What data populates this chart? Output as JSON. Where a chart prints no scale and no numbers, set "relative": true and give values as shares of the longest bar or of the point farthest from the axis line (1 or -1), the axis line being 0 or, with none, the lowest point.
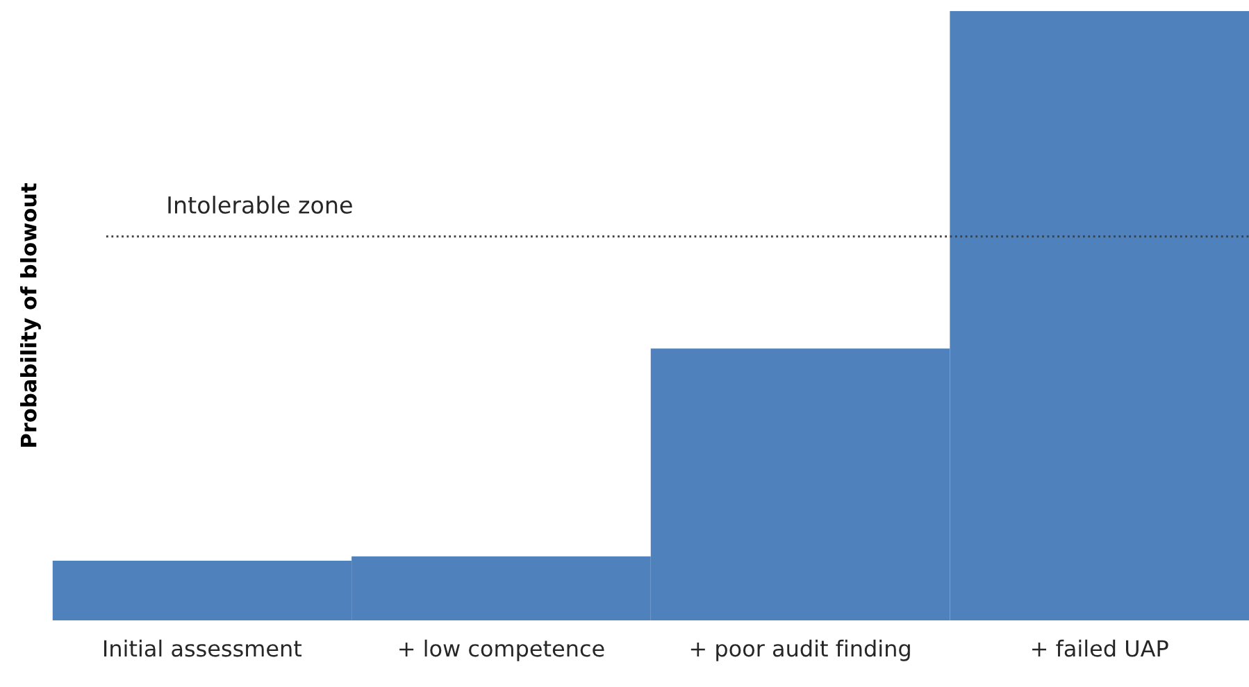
{
  "chart_data": {
    "type": "bar",
    "relative": true,
    "ylabel": "Probability of blowout",
    "categories": [
      "Initial assessment",
      "+ low competence",
      "+ poor audit finding",
      "+ failed UAP"
    ],
    "values": [
      0.098,
      0.105,
      0.446,
      1
    ],
    "color": "#4f81bd",
    "ref_lines": [
      {
        "axis": "y",
        "value": 0.63,
        "label": "Intolerable zone",
        "color": "#404040",
        "line_style": "dotted"
      }
    ],
    "grid": false
  }
}
